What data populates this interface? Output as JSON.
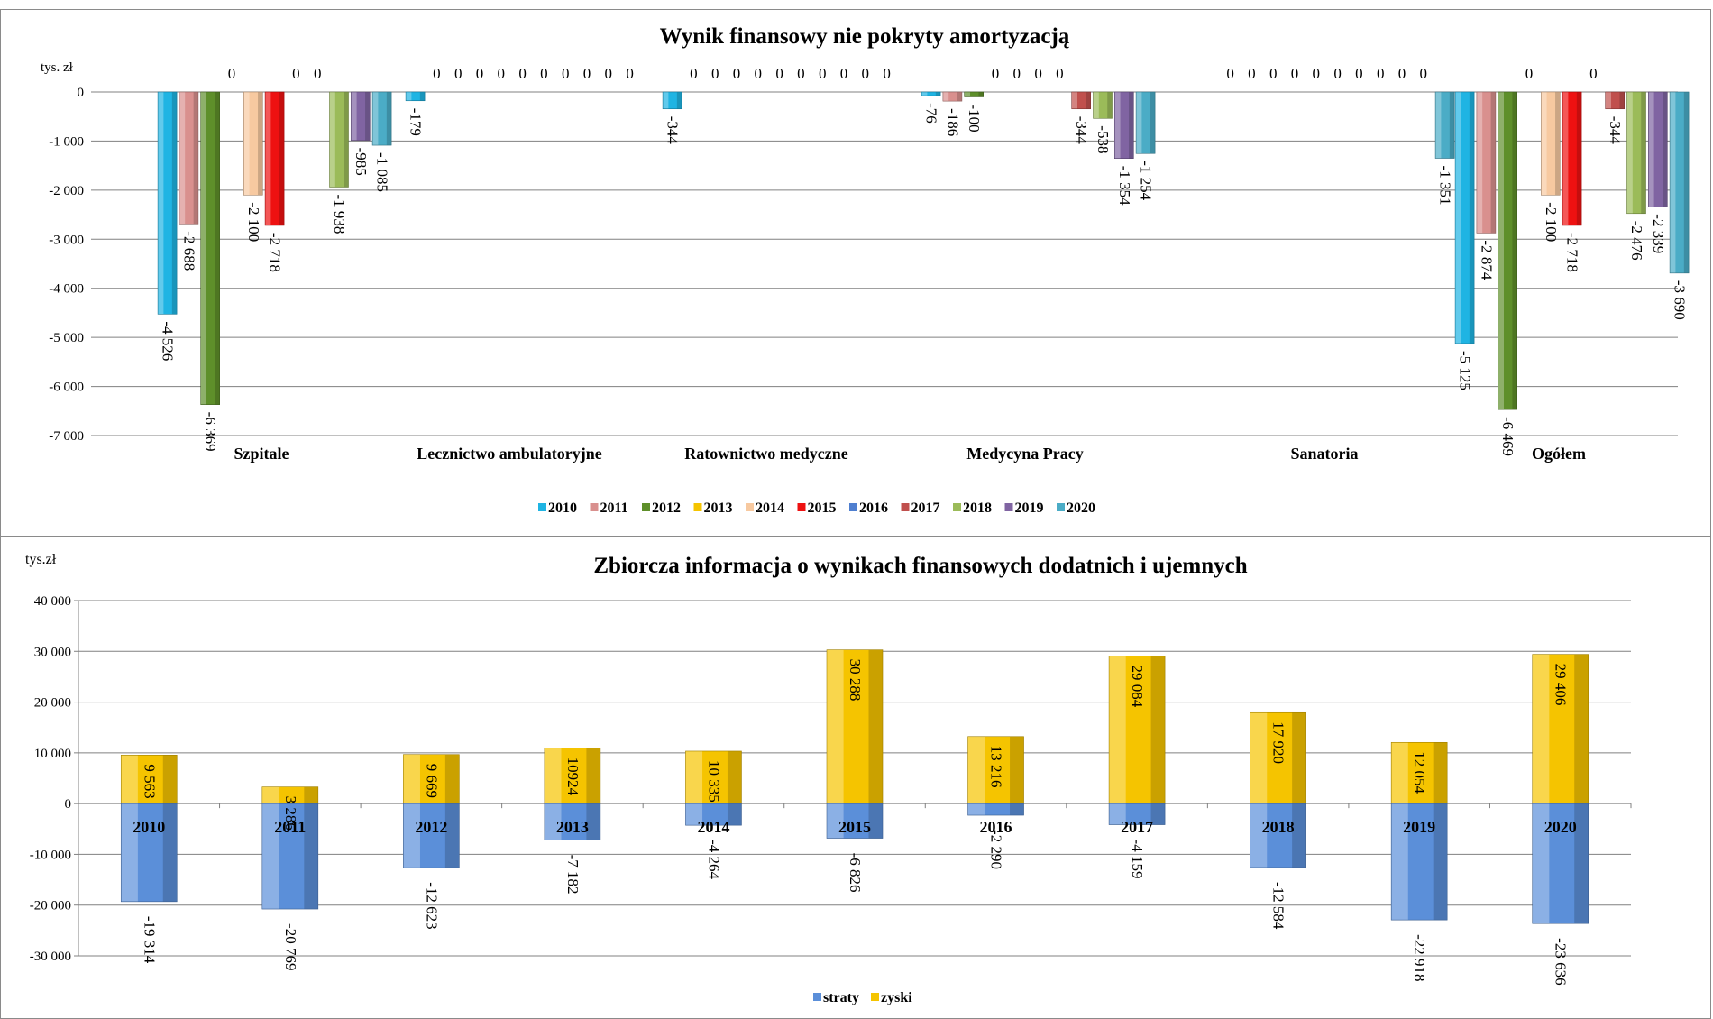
{
  "chart_data": [
    {
      "type": "bar",
      "title": "Wynik finansowy nie pokryty amortyzacją",
      "ylabel": "tys. zł",
      "xlabel": "",
      "ylim": [
        -7000,
        0
      ],
      "yticks": [
        0,
        -1000,
        -2000,
        -3000,
        -4000,
        -5000,
        -6000,
        -7000
      ],
      "ytick_labels": [
        "0",
        "-1 000",
        "-2 000",
        "-3 000",
        "-4 000",
        "-5 000",
        "-6 000",
        "-7 000"
      ],
      "grid": true,
      "legend_position": "bottom",
      "categories": [
        "Szpitale",
        "Lecznictwo ambulatoryjne",
        "Ratownictwo medyczne",
        "Medycyna Pracy",
        "Sanatoria",
        "Ogółem"
      ],
      "series": [
        {
          "name": "2010",
          "color": "#1fb4e3",
          "values": [
            -4526,
            -179,
            -344,
            -76,
            0,
            -5125
          ],
          "labels": [
            "-4 526",
            "-179",
            "-344",
            "-76",
            "0",
            "-5 125"
          ]
        },
        {
          "name": "2011",
          "color": "#d9908e",
          "values": [
            -2688,
            0,
            0,
            -186,
            0,
            -2874
          ],
          "labels": [
            "-2 688",
            "0",
            "0",
            "-186",
            "0",
            "-2 874"
          ]
        },
        {
          "name": "2012",
          "color": "#5e8f2a",
          "values": [
            -6369,
            0,
            0,
            -100,
            0,
            -6469
          ],
          "labels": [
            "-6 369",
            "0",
            "0",
            "-100",
            "0",
            "-6 469"
          ]
        },
        {
          "name": "2013",
          "color": "#f5c400",
          "values": [
            0,
            0,
            0,
            0,
            0,
            0
          ],
          "labels": [
            "0",
            "0",
            "0",
            "0",
            "0",
            "0"
          ]
        },
        {
          "name": "2014",
          "color": "#f7c9a0",
          "values": [
            -2100,
            0,
            0,
            0,
            0,
            -2100
          ],
          "labels": [
            "-2 100",
            "0",
            "0",
            "0",
            "0",
            "-2 100"
          ]
        },
        {
          "name": "2015",
          "color": "#ee1111",
          "values": [
            -2718,
            0,
            0,
            0,
            0,
            -2718
          ],
          "labels": [
            "-2 718",
            "0",
            "0",
            "0",
            "0",
            "-2 718"
          ]
        },
        {
          "name": "2016",
          "color": "#4f7fd0",
          "values": [
            0,
            0,
            0,
            0,
            0,
            0
          ],
          "labels": [
            "0",
            "0",
            "0",
            "0",
            "0",
            "0"
          ]
        },
        {
          "name": "2017",
          "color": "#c0504d",
          "values": [
            0,
            0,
            0,
            -344,
            0,
            -344
          ],
          "labels": [
            "0",
            "0",
            "0",
            "-344",
            "0",
            "-344"
          ]
        },
        {
          "name": "2018",
          "color": "#9bbb59",
          "values": [
            -1938,
            0,
            0,
            -538,
            0,
            -2476
          ],
          "labels": [
            "-1 938",
            "0",
            "0",
            "-538",
            "0",
            "-2 476"
          ]
        },
        {
          "name": "2019",
          "color": "#8064a2",
          "values": [
            -985,
            0,
            0,
            -1354,
            0,
            -2339
          ],
          "labels": [
            "-985",
            "0",
            "0",
            "-1 354",
            "0",
            "-2 339"
          ]
        },
        {
          "name": "2020",
          "color": "#4bacc6",
          "values": [
            -1085,
            0,
            0,
            -1254,
            -1351,
            -3690
          ],
          "labels": [
            "-1 085",
            "0",
            "0",
            "-1 254",
            "-1 351",
            "-3 690"
          ]
        }
      ]
    },
    {
      "type": "bar",
      "stacked": true,
      "title": "Zbiorcza informacja o wynikach finansowych dodatnich i ujemnych",
      "ylabel": "tys.zł",
      "xlabel": "",
      "ylim": [
        -30000,
        40000
      ],
      "yticks": [
        40000,
        30000,
        20000,
        10000,
        0,
        -10000,
        -20000,
        -30000
      ],
      "ytick_labels": [
        "40 000",
        "30 000",
        "20 000",
        "10 000",
        "0",
        "-10 000",
        "-20 000",
        "-30 000"
      ],
      "grid": true,
      "legend_position": "bottom",
      "categories": [
        "2010",
        "2011",
        "2012",
        "2013",
        "2014",
        "2015",
        "2016",
        "2017",
        "2018",
        "2019",
        "2020"
      ],
      "series": [
        {
          "name": "straty",
          "color": "#5b8fd9",
          "values": [
            -19314,
            -20769,
            -12623,
            -7182,
            -4264,
            -6826,
            -2290,
            -4159,
            -12584,
            -22918,
            -23636
          ],
          "labels": [
            "-19 314",
            "-20 769",
            "-12 623",
            "-7 182",
            "-4 264",
            "-6 826",
            "-2 290",
            "-4 159",
            "-12 584",
            "-22 918",
            "-23 636"
          ]
        },
        {
          "name": "zyski",
          "color": "#f5c400",
          "values": [
            9563,
            3286,
            9669,
            10924,
            10335,
            30288,
            13216,
            29084,
            17920,
            12054,
            29406
          ],
          "labels": [
            "9 563",
            "3 286",
            "9 669",
            "10924",
            "10 335",
            "30 288",
            "13 216",
            "29 084",
            "17 920",
            "12 054",
            "29 406"
          ]
        }
      ]
    }
  ]
}
